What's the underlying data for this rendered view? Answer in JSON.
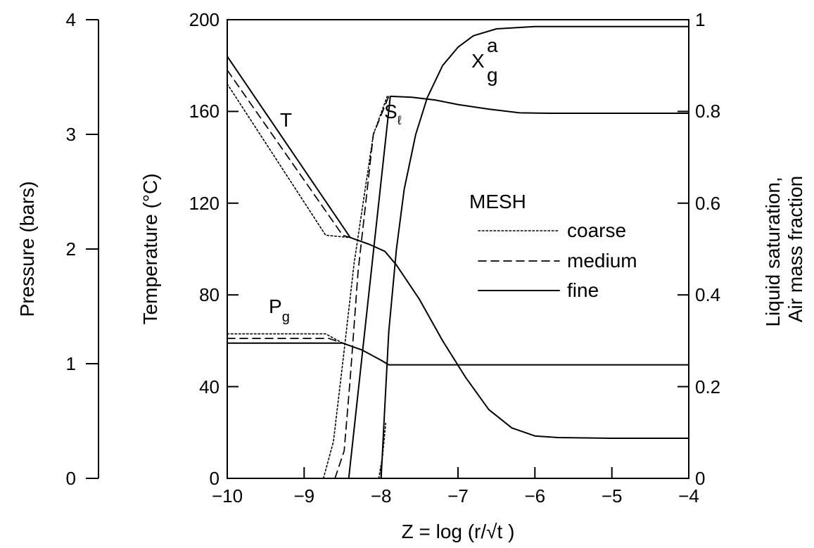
{
  "chart_data": {
    "type": "line",
    "xlabel": "Z = log (r/√t )",
    "xlim": [
      -10,
      -4
    ],
    "x_ticks": [
      "−10",
      "−9",
      "−8",
      "−7",
      "−6",
      "−5",
      "−4"
    ],
    "axes": {
      "pressure": {
        "label": "Pressure (bars)",
        "lim": [
          0,
          4
        ],
        "ticks": [
          "0",
          "1",
          "2",
          "3",
          "4"
        ]
      },
      "temperature": {
        "label": "Temperature (°C)",
        "lim": [
          0,
          200
        ],
        "ticks": [
          "0",
          "40",
          "80",
          "120",
          "160",
          "200"
        ]
      },
      "fraction": {
        "label_line1": "Liquid saturation,",
        "label_line2": "Air mass fraction",
        "lim": [
          0,
          1
        ],
        "ticks": [
          "0",
          "0.2",
          "0.4",
          "0.6",
          "0.8",
          "1"
        ]
      }
    },
    "curve_labels": {
      "T": "T",
      "Sl": "S",
      "Sl_sub": "ℓ",
      "Pg": "P",
      "Pg_sub": "g",
      "Xga": "X",
      "Xga_sub": "g",
      "Xga_sup": "a"
    },
    "legend": {
      "title": "MESH",
      "placement": "center-right",
      "entries": [
        {
          "label": "coarse",
          "style": "dotted"
        },
        {
          "label": "medium",
          "style": "dashed"
        },
        {
          "label": "fine",
          "style": "solid"
        }
      ]
    },
    "series": [
      {
        "variable": "T",
        "axis": "temperature",
        "mesh": "fine",
        "points": [
          [
            -10,
            184
          ],
          [
            -8.4,
            105
          ],
          [
            -8.15,
            102
          ],
          [
            -7.95,
            99
          ],
          [
            -7.8,
            93
          ],
          [
            -7.5,
            78
          ],
          [
            -7.2,
            60
          ],
          [
            -6.9,
            44
          ],
          [
            -6.6,
            30
          ],
          [
            -6.3,
            22
          ],
          [
            -6.0,
            18.5
          ],
          [
            -5.7,
            17.8
          ],
          [
            -5.0,
            17.5
          ],
          [
            -4,
            17.5
          ]
        ]
      },
      {
        "variable": "T",
        "axis": "temperature",
        "mesh": "medium",
        "points": [
          [
            -10,
            178
          ],
          [
            -8.5,
            106
          ],
          [
            -8.4,
            105
          ]
        ]
      },
      {
        "variable": "T",
        "axis": "temperature",
        "mesh": "coarse",
        "points": [
          [
            -10,
            172
          ],
          [
            -8.72,
            106
          ],
          [
            -8.4,
            105
          ]
        ]
      },
      {
        "variable": "Pg",
        "axis": "pressure",
        "mesh": "fine",
        "points": [
          [
            -10,
            1.18
          ],
          [
            -8.5,
            1.18
          ],
          [
            -8.25,
            1.12
          ],
          [
            -8.0,
            1.03
          ],
          [
            -7.9,
            0.99
          ],
          [
            -4,
            0.99
          ]
        ]
      },
      {
        "variable": "Pg",
        "axis": "pressure",
        "mesh": "medium",
        "points": [
          [
            -10,
            1.22
          ],
          [
            -8.68,
            1.22
          ],
          [
            -8.5,
            1.18
          ]
        ]
      },
      {
        "variable": "Pg",
        "axis": "pressure",
        "mesh": "coarse",
        "points": [
          [
            -10,
            1.26
          ],
          [
            -8.72,
            1.26
          ],
          [
            -8.5,
            1.18
          ]
        ]
      },
      {
        "variable": "Sl",
        "axis": "fraction",
        "mesh": "fine",
        "points": [
          [
            -8.42,
            0
          ],
          [
            -7.88,
            0.833
          ],
          [
            -7.6,
            0.831
          ],
          [
            -7.3,
            0.825
          ],
          [
            -7.0,
            0.815
          ],
          [
            -6.6,
            0.805
          ],
          [
            -6.2,
            0.797
          ],
          [
            -5.8,
            0.796
          ],
          [
            -4,
            0.796
          ]
        ]
      },
      {
        "variable": "Sl",
        "axis": "fraction",
        "mesh": "medium",
        "points": [
          [
            -8.6,
            0
          ],
          [
            -8.48,
            0.06
          ],
          [
            -8.4,
            0.22
          ],
          [
            -8.3,
            0.45
          ],
          [
            -8.1,
            0.75
          ],
          [
            -7.9,
            0.833
          ]
        ]
      },
      {
        "variable": "Sl",
        "axis": "fraction",
        "mesh": "coarse",
        "points": [
          [
            -8.75,
            0
          ],
          [
            -8.62,
            0.08
          ],
          [
            -8.5,
            0.25
          ],
          [
            -8.35,
            0.47
          ],
          [
            -8.1,
            0.75
          ],
          [
            -7.92,
            0.833
          ]
        ]
      },
      {
        "variable": "Xga",
        "axis": "fraction",
        "mesh": "fine",
        "points": [
          [
            -8.0,
            0
          ],
          [
            -7.95,
            0.16
          ],
          [
            -7.9,
            0.32
          ],
          [
            -7.8,
            0.5
          ],
          [
            -7.7,
            0.63
          ],
          [
            -7.55,
            0.75
          ],
          [
            -7.4,
            0.83
          ],
          [
            -7.2,
            0.9
          ],
          [
            -7.0,
            0.94
          ],
          [
            -6.8,
            0.965
          ],
          [
            -6.5,
            0.98
          ],
          [
            -6.0,
            0.985
          ],
          [
            -4,
            0.985
          ]
        ]
      },
      {
        "variable": "Xga",
        "axis": "fraction",
        "mesh": "coarse",
        "points": [
          [
            -8.03,
            0
          ],
          [
            -7.98,
            0.05
          ],
          [
            -7.94,
            0.12
          ]
        ]
      }
    ]
  }
}
